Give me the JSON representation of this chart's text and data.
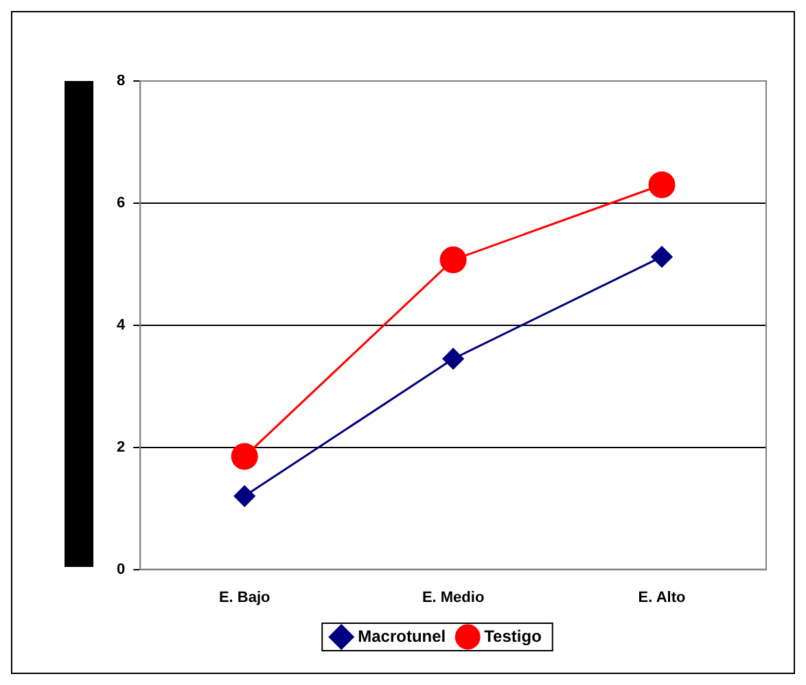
{
  "chart_data": {
    "type": "line",
    "categories": [
      "E. Bajo",
      "E. Medio",
      "E. Alto"
    ],
    "series": [
      {
        "name": "Macrotunel",
        "color": "#000080",
        "values": [
          1.2,
          3.45,
          5.12
        ],
        "marker": "diamond"
      },
      {
        "name": "Testigo",
        "color": "#ff0000",
        "values": [
          1.85,
          5.07,
          6.3
        ],
        "marker": "circle"
      }
    ],
    "ylim": [
      0,
      8
    ],
    "yticks": [
      0,
      2,
      4,
      6,
      8
    ],
    "grid": "y",
    "legend": "bottom",
    "line_style": "solid"
  }
}
